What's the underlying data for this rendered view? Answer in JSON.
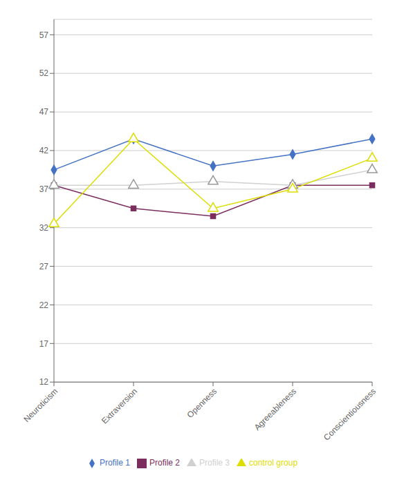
{
  "chart_data": {
    "type": "line",
    "categories": [
      "Neuroticism",
      "Extraversion",
      "Openness",
      "Agreeableness",
      "Conscientiousness"
    ],
    "series": [
      {
        "name": "Profile 1",
        "color": "#4472C4",
        "marker": "diamond",
        "values": [
          39.5,
          43.5,
          40.0,
          41.5,
          43.5
        ]
      },
      {
        "name": "Profile 2",
        "color": "#7B2D5E",
        "marker": "square",
        "values": [
          37.5,
          34.5,
          33.5,
          37.5,
          37.5
        ]
      },
      {
        "name": "Profile 3",
        "color": "#D0D0D0",
        "marker": "triangle",
        "values": [
          37.5,
          37.5,
          38.0,
          37.5,
          39.5
        ]
      },
      {
        "name": "control group",
        "color": "#DDDD00",
        "marker": "triangle",
        "values": [
          32.5,
          43.5,
          34.5,
          37.0,
          41.0
        ]
      }
    ],
    "ylim": [
      12,
      59
    ],
    "yticks": [
      12,
      17,
      22,
      27,
      32,
      37,
      42,
      47,
      52,
      57
    ],
    "grid": true,
    "legend": "bottom"
  }
}
